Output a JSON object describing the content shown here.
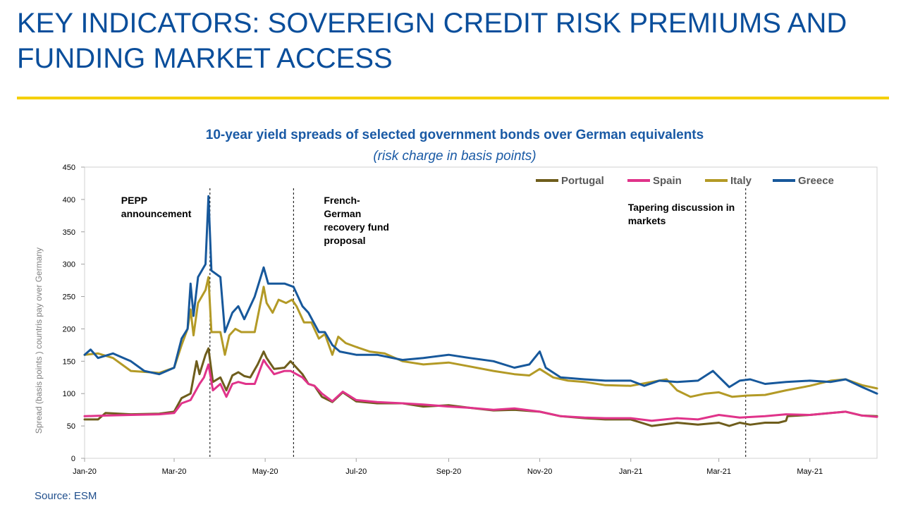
{
  "page": {
    "title": "KEY INDICATORS: SOVEREIGN CREDIT RISK PREMIUMS AND FUNDING MARKET ACCESS",
    "accent_color": "#f5cf00",
    "title_color": "#0a4e9b",
    "source": "Source: ESM"
  },
  "chart_data": {
    "type": "line",
    "title": "10-year yield spreads of selected government bonds over German equivalents",
    "subtitle": "(risk charge in basis points)",
    "ylabel": "Spread (basis points ) countris pay over Germany",
    "xlabel": "",
    "ylim": [
      0,
      450
    ],
    "yticks": [
      0,
      50,
      100,
      150,
      200,
      250,
      300,
      350,
      400,
      450
    ],
    "xlim": [
      "2020-01-01",
      "2021-06-15"
    ],
    "xticks": [
      {
        "date": "2020-01-01",
        "label": "Jan-20"
      },
      {
        "date": "2020-03-01",
        "label": "Mar-20"
      },
      {
        "date": "2020-05-01",
        "label": "May-20"
      },
      {
        "date": "2020-07-01",
        "label": "Jul-20"
      },
      {
        "date": "2020-09-01",
        "label": "Sep-20"
      },
      {
        "date": "2020-11-01",
        "label": "Nov-20"
      },
      {
        "date": "2021-01-01",
        "label": "Jan-21"
      },
      {
        "date": "2021-03-01",
        "label": "Mar-21"
      },
      {
        "date": "2021-05-01",
        "label": "May-21"
      }
    ],
    "grid": false,
    "legend_position": "top-right",
    "series": [
      {
        "name": "Portugal",
        "color": "#6e5d1c",
        "points": [
          [
            "2020-01-01",
            60
          ],
          [
            "2020-01-10",
            60
          ],
          [
            "2020-01-15",
            70
          ],
          [
            "2020-02-01",
            68
          ],
          [
            "2020-02-20",
            69
          ],
          [
            "2020-03-01",
            72
          ],
          [
            "2020-03-06",
            93
          ],
          [
            "2020-03-12",
            100
          ],
          [
            "2020-03-16",
            150
          ],
          [
            "2020-03-18",
            130
          ],
          [
            "2020-03-22",
            160
          ],
          [
            "2020-03-24",
            170
          ],
          [
            "2020-03-27",
            118
          ],
          [
            "2020-04-01",
            125
          ],
          [
            "2020-04-05",
            105
          ],
          [
            "2020-04-09",
            128
          ],
          [
            "2020-04-13",
            133
          ],
          [
            "2020-04-17",
            127
          ],
          [
            "2020-04-21",
            125
          ],
          [
            "2020-04-26",
            145
          ],
          [
            "2020-04-30",
            165
          ],
          [
            "2020-05-02",
            155
          ],
          [
            "2020-05-07",
            138
          ],
          [
            "2020-05-14",
            140
          ],
          [
            "2020-05-18",
            150
          ],
          [
            "2020-05-22",
            140
          ],
          [
            "2020-05-26",
            130
          ],
          [
            "2020-05-30",
            115
          ],
          [
            "2020-06-03",
            112
          ],
          [
            "2020-06-08",
            95
          ],
          [
            "2020-06-15",
            87
          ],
          [
            "2020-06-22",
            102
          ],
          [
            "2020-07-01",
            88
          ],
          [
            "2020-07-15",
            85
          ],
          [
            "2020-08-01",
            85
          ],
          [
            "2020-08-15",
            80
          ],
          [
            "2020-09-01",
            82
          ],
          [
            "2020-09-15",
            78
          ],
          [
            "2020-10-01",
            74
          ],
          [
            "2020-10-15",
            75
          ],
          [
            "2020-11-01",
            72
          ],
          [
            "2020-11-15",
            65
          ],
          [
            "2020-12-01",
            62
          ],
          [
            "2020-12-15",
            60
          ],
          [
            "2021-01-01",
            60
          ],
          [
            "2021-01-08",
            55
          ],
          [
            "2021-01-15",
            50
          ],
          [
            "2021-02-01",
            55
          ],
          [
            "2021-02-15",
            52
          ],
          [
            "2021-03-01",
            55
          ],
          [
            "2021-03-08",
            50
          ],
          [
            "2021-03-15",
            55
          ],
          [
            "2021-03-22",
            52
          ],
          [
            "2021-04-01",
            55
          ],
          [
            "2021-04-10",
            55
          ],
          [
            "2021-04-15",
            58
          ],
          [
            "2021-04-16",
            65
          ],
          [
            "2021-05-01",
            67
          ],
          [
            "2021-05-15",
            70
          ],
          [
            "2021-05-25",
            72
          ],
          [
            "2021-06-05",
            66
          ],
          [
            "2021-06-15",
            65
          ]
        ]
      },
      {
        "name": "Spain",
        "color": "#e0338a",
        "points": [
          [
            "2020-01-01",
            65
          ],
          [
            "2020-01-15",
            66
          ],
          [
            "2020-02-01",
            67
          ],
          [
            "2020-02-20",
            68
          ],
          [
            "2020-03-01",
            70
          ],
          [
            "2020-03-06",
            85
          ],
          [
            "2020-03-12",
            90
          ],
          [
            "2020-03-18",
            115
          ],
          [
            "2020-03-21",
            125
          ],
          [
            "2020-03-24",
            145
          ],
          [
            "2020-03-27",
            105
          ],
          [
            "2020-04-01",
            115
          ],
          [
            "2020-04-05",
            95
          ],
          [
            "2020-04-09",
            115
          ],
          [
            "2020-04-13",
            118
          ],
          [
            "2020-04-18",
            115
          ],
          [
            "2020-04-24",
            115
          ],
          [
            "2020-04-30",
            152
          ],
          [
            "2020-05-02",
            145
          ],
          [
            "2020-05-07",
            130
          ],
          [
            "2020-05-14",
            135
          ],
          [
            "2020-05-18",
            135
          ],
          [
            "2020-05-26",
            125
          ],
          [
            "2020-05-30",
            115
          ],
          [
            "2020-06-03",
            112
          ],
          [
            "2020-06-08",
            100
          ],
          [
            "2020-06-15",
            88
          ],
          [
            "2020-06-22",
            103
          ],
          [
            "2020-07-01",
            90
          ],
          [
            "2020-07-15",
            87
          ],
          [
            "2020-08-01",
            85
          ],
          [
            "2020-08-15",
            83
          ],
          [
            "2020-09-01",
            80
          ],
          [
            "2020-09-15",
            78
          ],
          [
            "2020-10-01",
            75
          ],
          [
            "2020-10-15",
            77
          ],
          [
            "2020-11-01",
            72
          ],
          [
            "2020-11-15",
            65
          ],
          [
            "2020-12-01",
            63
          ],
          [
            "2020-12-15",
            62
          ],
          [
            "2021-01-01",
            62
          ],
          [
            "2021-01-15",
            58
          ],
          [
            "2021-02-01",
            62
          ],
          [
            "2021-02-15",
            60
          ],
          [
            "2021-03-01",
            67
          ],
          [
            "2021-03-15",
            63
          ],
          [
            "2021-04-01",
            65
          ],
          [
            "2021-04-15",
            68
          ],
          [
            "2021-05-01",
            67
          ],
          [
            "2021-05-15",
            70
          ],
          [
            "2021-05-25",
            72
          ],
          [
            "2021-06-05",
            66
          ],
          [
            "2021-06-15",
            64
          ]
        ]
      },
      {
        "name": "Italy",
        "color": "#b39a26",
        "points": [
          [
            "2020-01-01",
            160
          ],
          [
            "2020-01-10",
            162
          ],
          [
            "2020-01-20",
            155
          ],
          [
            "2020-02-01",
            135
          ],
          [
            "2020-02-20",
            132
          ],
          [
            "2020-03-01",
            140
          ],
          [
            "2020-03-06",
            175
          ],
          [
            "2020-03-10",
            200
          ],
          [
            "2020-03-12",
            230
          ],
          [
            "2020-03-14",
            190
          ],
          [
            "2020-03-17",
            240
          ],
          [
            "2020-03-22",
            260
          ],
          [
            "2020-03-24",
            280
          ],
          [
            "2020-03-26",
            195
          ],
          [
            "2020-04-01",
            195
          ],
          [
            "2020-04-04",
            160
          ],
          [
            "2020-04-07",
            190
          ],
          [
            "2020-04-11",
            200
          ],
          [
            "2020-04-15",
            195
          ],
          [
            "2020-04-24",
            195
          ],
          [
            "2020-04-27",
            230
          ],
          [
            "2020-04-30",
            265
          ],
          [
            "2020-05-02",
            240
          ],
          [
            "2020-05-06",
            225
          ],
          [
            "2020-05-10",
            245
          ],
          [
            "2020-05-15",
            240
          ],
          [
            "2020-05-19",
            245
          ],
          [
            "2020-05-22",
            235
          ],
          [
            "2020-05-27",
            210
          ],
          [
            "2020-06-01",
            210
          ],
          [
            "2020-06-06",
            185
          ],
          [
            "2020-06-10",
            192
          ],
          [
            "2020-06-15",
            160
          ],
          [
            "2020-06-19",
            188
          ],
          [
            "2020-06-24",
            178
          ],
          [
            "2020-07-01",
            172
          ],
          [
            "2020-07-10",
            165
          ],
          [
            "2020-07-20",
            162
          ],
          [
            "2020-08-01",
            150
          ],
          [
            "2020-08-15",
            145
          ],
          [
            "2020-09-01",
            148
          ],
          [
            "2020-09-15",
            142
          ],
          [
            "2020-10-01",
            135
          ],
          [
            "2020-10-15",
            130
          ],
          [
            "2020-10-25",
            128
          ],
          [
            "2020-11-01",
            138
          ],
          [
            "2020-11-10",
            125
          ],
          [
            "2020-11-20",
            120
          ],
          [
            "2020-12-01",
            118
          ],
          [
            "2020-12-15",
            113
          ],
          [
            "2021-01-01",
            112
          ],
          [
            "2021-01-15",
            118
          ],
          [
            "2021-01-25",
            122
          ],
          [
            "2021-02-01",
            105
          ],
          [
            "2021-02-10",
            95
          ],
          [
            "2021-02-20",
            100
          ],
          [
            "2021-03-01",
            102
          ],
          [
            "2021-03-10",
            95
          ],
          [
            "2021-03-20",
            97
          ],
          [
            "2021-04-01",
            98
          ],
          [
            "2021-04-15",
            105
          ],
          [
            "2021-05-01",
            112
          ],
          [
            "2021-05-15",
            120
          ],
          [
            "2021-05-25",
            122
          ],
          [
            "2021-06-05",
            113
          ],
          [
            "2021-06-15",
            108
          ]
        ]
      },
      {
        "name": "Greece",
        "color": "#17589b",
        "points": [
          [
            "2020-01-01",
            160
          ],
          [
            "2020-01-05",
            168
          ],
          [
            "2020-01-10",
            155
          ],
          [
            "2020-01-20",
            162
          ],
          [
            "2020-02-01",
            150
          ],
          [
            "2020-02-10",
            135
          ],
          [
            "2020-02-20",
            130
          ],
          [
            "2020-03-01",
            140
          ],
          [
            "2020-03-06",
            185
          ],
          [
            "2020-03-10",
            200
          ],
          [
            "2020-03-12",
            270
          ],
          [
            "2020-03-14",
            220
          ],
          [
            "2020-03-17",
            280
          ],
          [
            "2020-03-22",
            300
          ],
          [
            "2020-03-24",
            405
          ],
          [
            "2020-03-26",
            290
          ],
          [
            "2020-04-01",
            280
          ],
          [
            "2020-04-04",
            195
          ],
          [
            "2020-04-09",
            225
          ],
          [
            "2020-04-13",
            235
          ],
          [
            "2020-04-17",
            215
          ],
          [
            "2020-04-24",
            250
          ],
          [
            "2020-04-30",
            295
          ],
          [
            "2020-05-03",
            270
          ],
          [
            "2020-05-07",
            270
          ],
          [
            "2020-05-14",
            270
          ],
          [
            "2020-05-20",
            265
          ],
          [
            "2020-05-26",
            235
          ],
          [
            "2020-05-30",
            225
          ],
          [
            "2020-06-06",
            195
          ],
          [
            "2020-06-10",
            195
          ],
          [
            "2020-06-15",
            175
          ],
          [
            "2020-06-20",
            165
          ],
          [
            "2020-07-01",
            160
          ],
          [
            "2020-07-15",
            160
          ],
          [
            "2020-08-01",
            152
          ],
          [
            "2020-08-15",
            155
          ],
          [
            "2020-09-01",
            160
          ],
          [
            "2020-09-15",
            155
          ],
          [
            "2020-10-01",
            150
          ],
          [
            "2020-10-15",
            140
          ],
          [
            "2020-10-25",
            145
          ],
          [
            "2020-11-01",
            165
          ],
          [
            "2020-11-05",
            140
          ],
          [
            "2020-11-15",
            125
          ],
          [
            "2020-12-01",
            122
          ],
          [
            "2020-12-15",
            120
          ],
          [
            "2021-01-01",
            120
          ],
          [
            "2021-01-10",
            112
          ],
          [
            "2021-01-20",
            120
          ],
          [
            "2021-02-01",
            118
          ],
          [
            "2021-02-15",
            120
          ],
          [
            "2021-02-25",
            135
          ],
          [
            "2021-03-08",
            110
          ],
          [
            "2021-03-15",
            120
          ],
          [
            "2021-03-22",
            122
          ],
          [
            "2021-04-01",
            115
          ],
          [
            "2021-04-15",
            118
          ],
          [
            "2021-05-01",
            120
          ],
          [
            "2021-05-15",
            118
          ],
          [
            "2021-05-25",
            122
          ],
          [
            "2021-06-05",
            110
          ],
          [
            "2021-06-15",
            100
          ]
        ]
      }
    ],
    "annotations": [
      {
        "date": "2020-03-25",
        "lines": [
          "PEPP",
          "announcement"
        ],
        "label_side": "left"
      },
      {
        "date": "2020-05-20",
        "lines": [
          "French-",
          "German",
          "recovery fund",
          "proposal"
        ],
        "label_side": "right"
      },
      {
        "date": "2021-03-19",
        "lines": [
          "Tapering discussion in",
          "markets"
        ],
        "label_side": "left"
      }
    ]
  }
}
